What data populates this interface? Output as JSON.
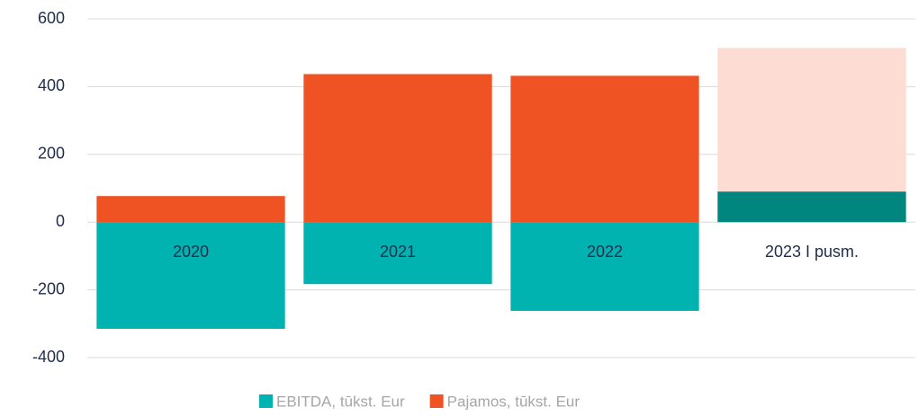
{
  "chart_data": {
    "type": "bar",
    "categories": [
      "2020",
      "2021",
      "2022",
      "2023 I pusm."
    ],
    "series": [
      {
        "name": "Pajamos, tūkst. Eur",
        "color": "#f05323",
        "colors": [
          "#f05323",
          "#f05323",
          "#f05323",
          "#fddcd3"
        ],
        "values": [
          77,
          437,
          432,
          514
        ]
      },
      {
        "name": "EBITDA, tūkst. Eur",
        "color": "#00b2b0",
        "colors": [
          "#00b2b0",
          "#00b2b0",
          "#00b2b0",
          "#00857f"
        ],
        "values": [
          -315,
          -183,
          -262,
          90
        ]
      }
    ],
    "legend_order": [
      1,
      0
    ],
    "ylim": [
      -400,
      600
    ],
    "yticks": [
      -400,
      -200,
      0,
      200,
      400,
      600
    ],
    "grid": true,
    "legend": "bottom"
  }
}
